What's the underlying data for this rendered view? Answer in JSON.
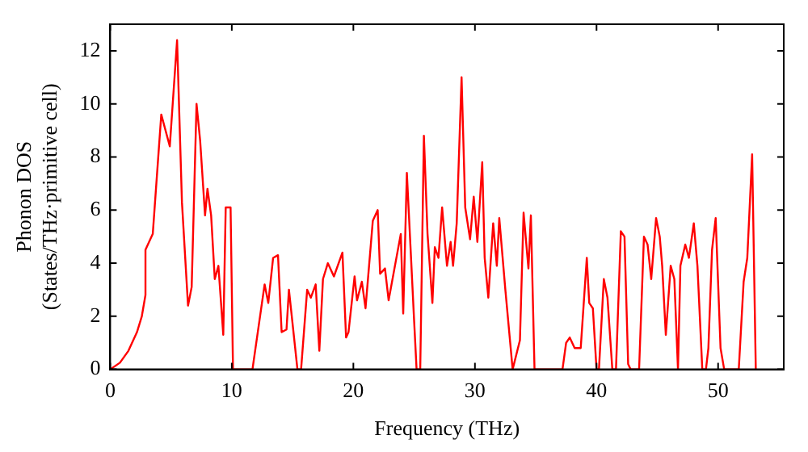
{
  "chart_data": {
    "type": "line",
    "xlabel": "Frequency (THz)",
    "ylabel": "Phonon DOS\n(States/THz·primitive cell)",
    "xlim": [
      0,
      55.4
    ],
    "ylim": [
      0,
      13
    ],
    "xticks": [
      0,
      10,
      20,
      30,
      40,
      50
    ],
    "yticks": [
      0,
      2,
      4,
      6,
      8,
      10,
      12
    ],
    "grid": false,
    "legend": false,
    "marker": "none",
    "line_style": "solid",
    "series": [
      {
        "color": "#ff0000",
        "x": [
          0,
          0.8,
          1.5,
          2.2,
          2.6,
          2.9,
          2.9,
          3.5,
          4.2,
          4.9,
          5.5,
          5.9,
          6.4,
          6.7,
          7.1,
          7.4,
          7.8,
          8.0,
          8.3,
          8.6,
          8.9,
          9.3,
          9.5,
          9.9,
          10.1,
          11.7,
          12.7,
          13.0,
          13.4,
          13.8,
          14.1,
          14.5,
          14.7,
          15.4,
          15.7,
          16.2,
          16.5,
          16.9,
          17.2,
          17.5,
          17.9,
          18.4,
          19.1,
          19.4,
          19.6,
          20.1,
          20.3,
          20.7,
          21.0,
          21.6,
          22.0,
          22.2,
          22.6,
          22.9,
          23.9,
          24.1,
          24.4,
          25.0,
          25.2,
          25.5,
          25.8,
          26.1,
          26.5,
          26.7,
          27.0,
          27.3,
          27.7,
          28.0,
          28.2,
          28.5,
          28.9,
          29.2,
          29.6,
          29.9,
          30.2,
          30.6,
          30.8,
          31.1,
          31.5,
          31.8,
          32.0,
          32.5,
          33.1,
          33.7,
          34.0,
          34.4,
          34.6,
          34.9,
          37.2,
          37.5,
          37.8,
          38.2,
          38.7,
          39.2,
          39.4,
          39.7,
          40.0,
          40.2,
          40.6,
          40.9,
          41.3,
          41.6,
          42.0,
          42.3,
          42.6,
          42.8,
          43.5,
          43.9,
          44.2,
          44.5,
          44.9,
          45.2,
          45.4,
          45.7,
          46.1,
          46.4,
          46.7,
          46.9,
          47.3,
          47.6,
          48.0,
          48.3,
          48.7,
          49.0,
          49.2,
          49.5,
          49.8,
          50.2,
          50.5,
          51.7,
          52.1,
          52.4,
          52.8,
          53.1
        ],
        "values": [
          0,
          0.25,
          0.7,
          1.4,
          2.0,
          2.8,
          4.5,
          5.1,
          9.6,
          8.4,
          12.4,
          6.3,
          2.4,
          3.1,
          10.0,
          8.6,
          5.8,
          6.8,
          5.8,
          3.4,
          3.9,
          1.3,
          6.1,
          6.1,
          0,
          0,
          3.2,
          2.5,
          4.2,
          4.3,
          1.4,
          1.5,
          3.0,
          0,
          0,
          3.0,
          2.7,
          3.2,
          0.7,
          3.4,
          4.0,
          3.5,
          4.4,
          1.2,
          1.4,
          3.5,
          2.6,
          3.3,
          2.3,
          5.6,
          6.0,
          3.6,
          3.8,
          2.6,
          5.1,
          2.1,
          7.4,
          1.8,
          0,
          0,
          8.8,
          5.1,
          2.5,
          4.6,
          4.2,
          6.1,
          3.9,
          4.8,
          3.9,
          5.5,
          11.0,
          6.1,
          4.9,
          6.5,
          4.8,
          7.8,
          4.2,
          2.7,
          5.5,
          3.9,
          5.7,
          3.0,
          0,
          1.1,
          5.9,
          3.8,
          5.8,
          0,
          0,
          1.0,
          1.2,
          0.8,
          0.8,
          4.2,
          2.5,
          2.3,
          0,
          0,
          3.4,
          2.7,
          0,
          0,
          5.2,
          5.0,
          0.2,
          0,
          0,
          5.0,
          4.7,
          3.4,
          5.7,
          5.0,
          3.9,
          1.3,
          3.9,
          3.4,
          0,
          3.9,
          4.7,
          4.2,
          5.5,
          3.9,
          0,
          0,
          0.8,
          4.5,
          5.7,
          0.8,
          0,
          0,
          3.3,
          4.2,
          8.1,
          0
        ]
      }
    ]
  }
}
